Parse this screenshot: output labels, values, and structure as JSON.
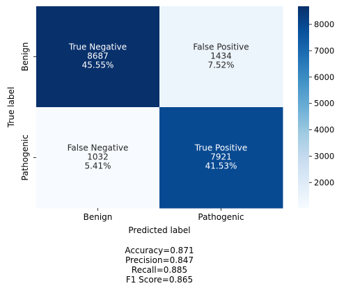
{
  "chart_data": {
    "type": "heatmap",
    "title": "",
    "xlabel": "Predicted label",
    "ylabel": "True label",
    "x_categories": [
      "Benign",
      "Pathogenic"
    ],
    "y_categories": [
      "Benign",
      "Pathogenic"
    ],
    "cells": [
      [
        {
          "name": "True Negative",
          "count": 8687,
          "percent": "45.55%",
          "count_label": "8687"
        },
        {
          "name": "False Positive",
          "count": 1434,
          "percent": "7.52%",
          "count_label": "1434"
        }
      ],
      [
        {
          "name": "False Negative",
          "count": 1032,
          "percent": "5.41%",
          "count_label": "1032"
        },
        {
          "name": "True Positive",
          "count": 7921,
          "percent": "41.53%",
          "count_label": "7921"
        }
      ]
    ],
    "colormap": "Blues",
    "colorbar": {
      "vmin": 1032,
      "vmax": 8687,
      "ticks": [
        2000,
        3000,
        4000,
        5000,
        6000,
        7000,
        8000
      ]
    },
    "stats": [
      "Accuracy=0.871",
      "Precision=0.847",
      "Recall=0.885",
      "F1 Score=0.865"
    ],
    "grid": false
  }
}
